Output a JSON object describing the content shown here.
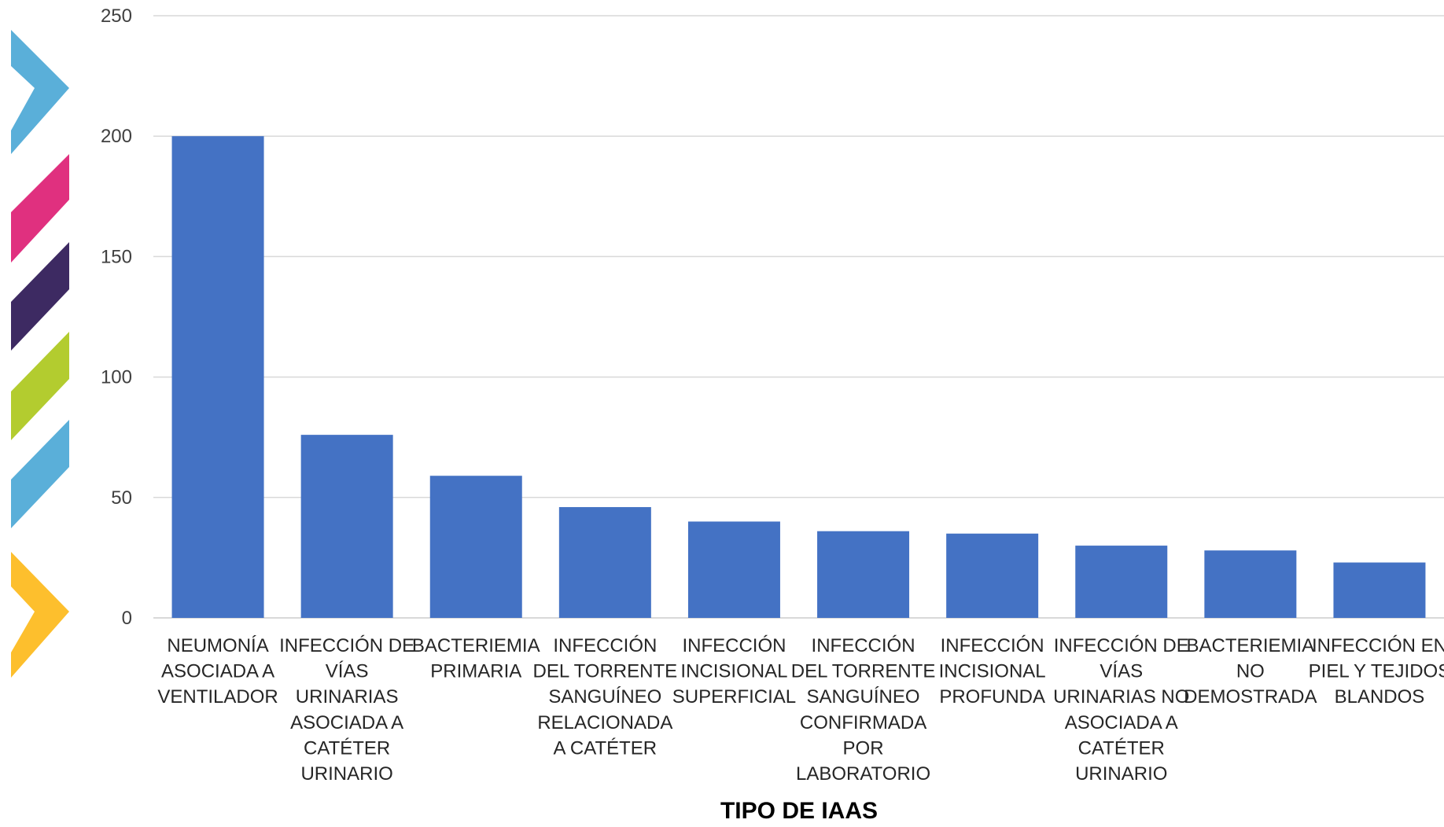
{
  "chart_data": {
    "type": "bar",
    "title": "",
    "xlabel": "TIPO DE IAAS",
    "ylabel": "",
    "ylim": [
      0,
      250
    ],
    "yticks": [
      0,
      50,
      100,
      150,
      200,
      250
    ],
    "grid": true,
    "legend": "none",
    "categories": [
      [
        "NEUMONÍA",
        "ASOCIADA A",
        "VENTILADOR"
      ],
      [
        "INFECCIÓN DE",
        "VÍAS",
        "URINARIAS",
        "ASOCIADA A",
        "CATÉTER",
        "URINARIO"
      ],
      [
        "BACTERIEMIA",
        "PRIMARIA"
      ],
      [
        "INFECCIÓN",
        "DEL TORRENTE",
        "SANGUÍNEO",
        "RELACIONADA",
        "A CATÉTER"
      ],
      [
        "INFECCIÓN",
        "INCISIONAL",
        "SUPERFICIAL"
      ],
      [
        "INFECCIÓN",
        "DEL TORRENTE",
        "SANGUÍNEO",
        "CONFIRMADA",
        "POR",
        "LABORATORIO"
      ],
      [
        "INFECCIÓN",
        "INCISIONAL",
        "PROFUNDA"
      ],
      [
        "INFECCIÓN DE",
        "VÍAS",
        "URINARIAS NO",
        "ASOCIADA A",
        "CATÉTER",
        "URINARIO"
      ],
      [
        "BACTERIEMIA",
        "NO",
        "DEMOSTRADA"
      ],
      [
        "INFECCIÓN EN",
        "PIEL Y TEJIDOS",
        "BLANDOS"
      ]
    ],
    "values": [
      200,
      76,
      59,
      46,
      40,
      36,
      35,
      30,
      28,
      23
    ],
    "bar_color": "#4472C4",
    "grid_color": "#D9D9D9"
  },
  "decoration": {
    "chevrons": [
      {
        "name": "chevron-blue-top",
        "color": "#5AAFD9"
      },
      {
        "name": "chevron-pink",
        "color": "#E0307F"
      },
      {
        "name": "chevron-purple",
        "color": "#3D2A62"
      },
      {
        "name": "chevron-green",
        "color": "#B3CC2F"
      },
      {
        "name": "chevron-blue-bottom",
        "color": "#5AAFD9"
      },
      {
        "name": "chevron-yellow",
        "color": "#FDBF2D"
      }
    ]
  }
}
